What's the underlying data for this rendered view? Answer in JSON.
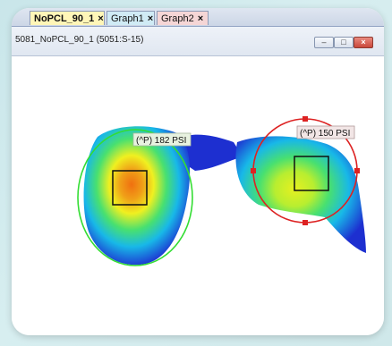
{
  "tabs": [
    {
      "label": "NoPCL_90_1",
      "close": "×",
      "active": true,
      "color": "#fff6b8"
    },
    {
      "label": "Graph1",
      "close": "×",
      "active": false,
      "color": "#d0ebf5"
    },
    {
      "label": "Graph2",
      "close": "×",
      "active": false,
      "color": "#f5d6d6"
    }
  ],
  "window": {
    "title": "5081_NoPCL_90_1 (5051:S-15)",
    "minimize": "‒",
    "maximize": "□",
    "close": "×"
  },
  "regions": {
    "left": {
      "label": "(^P) 182 PSI",
      "shape": "ellipse",
      "outline_color": "#33dd33"
    },
    "right": {
      "label": "(^P) 150 PSI",
      "shape": "circle",
      "outline_color": "#dd2222"
    }
  },
  "colors": {
    "heat_low": "#1d2fd0",
    "heat_mid": "#18b8e8",
    "heat_green": "#48e070",
    "heat_yellow": "#f0f020",
    "heat_high": "#f07010"
  }
}
